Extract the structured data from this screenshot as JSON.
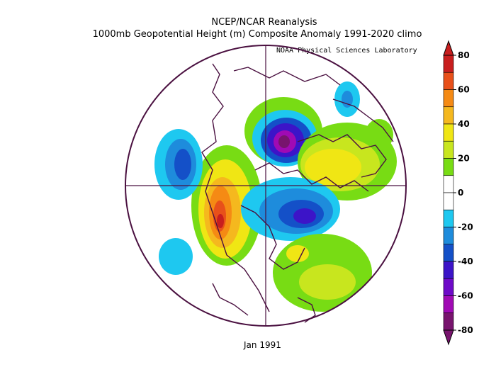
{
  "header": {
    "line1": "NCEP/NCAR Reanalysis",
    "line2": "1000mb Geopotential Height (m) Composite Anomaly 1991-2020 climo"
  },
  "credit": "NOAA Physical Sciences Laboratory",
  "caption": "Jan 1991",
  "map": {
    "projection": "north polar stereographic",
    "field": "1000mb geopotential height anomaly",
    "units": "m"
  },
  "colorbar": {
    "ticks": [
      "80",
      "60",
      "40",
      "20",
      "0",
      "-20",
      "-40",
      "-60",
      "-80"
    ],
    "colors": [
      "#c81e1e",
      "#e8501a",
      "#f58a14",
      "#f5b81e",
      "#f0e614",
      "#c8e61e",
      "#78dc14",
      "#ffffff",
      "#ffffff",
      "#1ec8f0",
      "#1e8cdc",
      "#1450c8",
      "#3c14c8",
      "#6e0ac8",
      "#a00ab4",
      "#78146e"
    ]
  }
}
